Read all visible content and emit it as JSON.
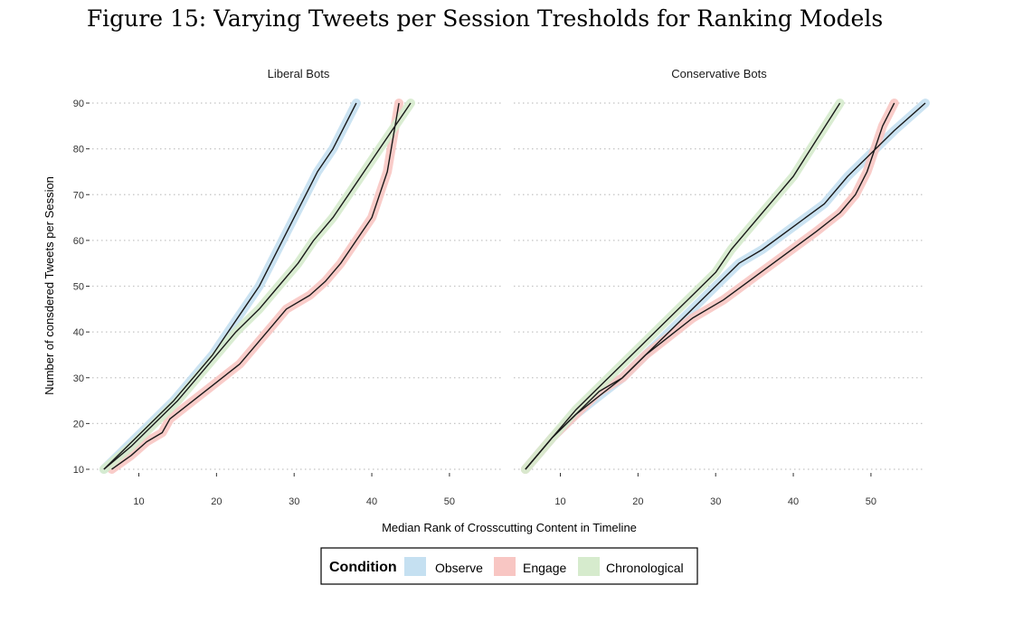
{
  "figure_title": "Figure 15: Varying Tweets per Session Tresholds for Ranking Models",
  "colors": {
    "Observe": "#c5e0f1",
    "Engage": "#f8c6c3",
    "Chronological": "#d6ebcd",
    "line": "#1a1a1a",
    "grid": "#c4c4c4"
  },
  "chart_data": [
    {
      "type": "line",
      "title": "Liberal Bots",
      "xlabel": "Median Rank of Crosscutting Content in Timeline",
      "ylabel": "Number of consdered Tweets per Session",
      "xlim": [
        4,
        57
      ],
      "ylim": [
        10,
        90
      ],
      "xticks": [
        10,
        20,
        30,
        40,
        50
      ],
      "yticks": [
        10,
        20,
        30,
        40,
        50,
        60,
        70,
        80,
        90
      ],
      "grid": "horizontal dotted",
      "series": [
        {
          "name": "Observe",
          "points": [
            [
              5.5,
              10
            ],
            [
              8.5,
              15
            ],
            [
              11.5,
              20
            ],
            [
              14.5,
              25
            ],
            [
              17,
              30
            ],
            [
              19.5,
              35
            ],
            [
              21.5,
              40
            ],
            [
              23.5,
              45
            ],
            [
              25.5,
              50
            ],
            [
              27,
              55
            ],
            [
              28.5,
              60
            ],
            [
              30,
              65
            ],
            [
              31.5,
              70
            ],
            [
              33,
              75
            ],
            [
              35,
              80
            ],
            [
              36.5,
              85
            ],
            [
              38,
              90
            ]
          ]
        },
        {
          "name": "Engage",
          "points": [
            [
              6.5,
              10
            ],
            [
              9,
              13
            ],
            [
              11,
              16
            ],
            [
              13,
              18
            ],
            [
              14,
              21
            ],
            [
              17,
              25
            ],
            [
              20,
              29
            ],
            [
              23,
              33
            ],
            [
              25,
              37
            ],
            [
              27,
              41
            ],
            [
              29,
              45
            ],
            [
              32,
              48
            ],
            [
              34,
              51
            ],
            [
              36,
              55
            ],
            [
              38,
              60
            ],
            [
              40,
              65
            ],
            [
              41,
              70
            ],
            [
              42,
              75
            ],
            [
              42.5,
              80
            ],
            [
              43,
              85
            ],
            [
              43.5,
              90
            ]
          ]
        },
        {
          "name": "Chronological",
          "points": [
            [
              5.5,
              10
            ],
            [
              9,
              15
            ],
            [
              12,
              20
            ],
            [
              15,
              25
            ],
            [
              17.5,
              30
            ],
            [
              20,
              35
            ],
            [
              22.5,
              40
            ],
            [
              25.5,
              45
            ],
            [
              28,
              50
            ],
            [
              30.5,
              55
            ],
            [
              32.5,
              60
            ],
            [
              35,
              65
            ],
            [
              37,
              70
            ],
            [
              39,
              75
            ],
            [
              41,
              80
            ],
            [
              43,
              85
            ],
            [
              45,
              90
            ]
          ]
        }
      ]
    },
    {
      "type": "line",
      "title": "Conservative Bots",
      "xlabel": "Median Rank of Crosscutting Content in Timeline",
      "ylabel": "Number of consdered Tweets per Session",
      "xlim": [
        4,
        57
      ],
      "ylim": [
        10,
        90
      ],
      "xticks": [
        10,
        20,
        30,
        40,
        50
      ],
      "yticks": [
        10,
        20,
        30,
        40,
        50,
        60,
        70,
        80,
        90
      ],
      "grid": "horizontal dotted",
      "series": [
        {
          "name": "Observe",
          "points": [
            [
              5.5,
              10
            ],
            [
              9,
              17
            ],
            [
              12,
              22
            ],
            [
              15,
              26
            ],
            [
              18,
              30
            ],
            [
              21,
              35
            ],
            [
              24,
              40
            ],
            [
              27,
              45
            ],
            [
              30,
              50
            ],
            [
              33,
              55
            ],
            [
              36,
              58
            ],
            [
              40,
              63
            ],
            [
              44,
              68
            ],
            [
              47,
              74
            ],
            [
              50,
              79
            ],
            [
              53,
              84
            ],
            [
              57,
              90
            ]
          ]
        },
        {
          "name": "Engage",
          "points": [
            [
              5.5,
              10
            ],
            [
              9,
              17
            ],
            [
              12,
              22
            ],
            [
              15,
              27
            ],
            [
              18,
              30
            ],
            [
              21,
              35
            ],
            [
              24,
              39
            ],
            [
              27,
              43
            ],
            [
              31,
              47
            ],
            [
              35,
              52
            ],
            [
              39,
              57
            ],
            [
              43,
              62
            ],
            [
              46,
              66
            ],
            [
              48,
              70
            ],
            [
              49.5,
              75
            ],
            [
              50.5,
              80
            ],
            [
              51.5,
              85
            ],
            [
              53,
              90
            ]
          ]
        },
        {
          "name": "Chronological",
          "points": [
            [
              5.5,
              10
            ],
            [
              9,
              17
            ],
            [
              12,
              23
            ],
            [
              15,
              28
            ],
            [
              18,
              33
            ],
            [
              21,
              38
            ],
            [
              24,
              43
            ],
            [
              27,
              48
            ],
            [
              30,
              53
            ],
            [
              32,
              58
            ],
            [
              34,
              62
            ],
            [
              36,
              66
            ],
            [
              38,
              70
            ],
            [
              40,
              74
            ],
            [
              41.5,
              78
            ],
            [
              43,
              82
            ],
            [
              44.5,
              86
            ],
            [
              46,
              90
            ]
          ]
        }
      ]
    }
  ],
  "legend": {
    "title": "Condition",
    "items": [
      "Observe",
      "Engage",
      "Chronological"
    ]
  }
}
